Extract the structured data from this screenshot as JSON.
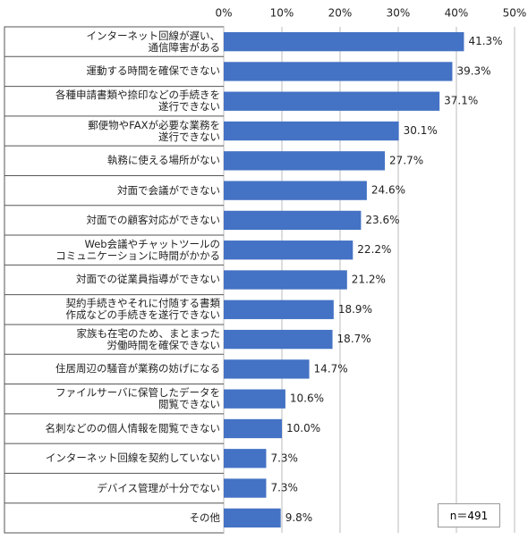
{
  "chart_data": {
    "type": "bar",
    "orientation": "horizontal",
    "categories": [
      "インターネット回線が遅い、\n通信障害がある",
      "運動する時間を確保できない",
      "各種申請書類や捺印などの手続きを\n遂行できない",
      "郵便物やFAXが必要な業務を\n遂行できない",
      "執務に使える場所がない",
      "対面で会議ができない",
      "対面での顧客対応ができない",
      "Web会議やチャットツールの\nコミュニケーションに時間がかかる",
      "対面での従業員指導ができない",
      "契約手続きやそれに付随する書類\n作成などの手続きを遂行できない",
      "家族も在宅のため、まとまった\n労働時間を確保できない",
      "住居周辺の騒音が業務の妨げになる",
      "ファイルサーバに保管したデータを\n閲覧できない",
      "名刺などのの個人情報を閲覧できない",
      "インターネット回線を契約していない",
      "デバイス管理が十分でない",
      "その他"
    ],
    "values": [
      41.3,
      39.3,
      37.1,
      30.1,
      27.7,
      24.6,
      23.6,
      22.2,
      21.2,
      18.9,
      18.7,
      14.7,
      10.6,
      10.0,
      7.3,
      7.3,
      9.8
    ],
    "value_labels": [
      "41.3%",
      "39.3%",
      "37.1%",
      "30.1%",
      "27.7%",
      "24.6%",
      "23.6%",
      "22.2%",
      "21.2%",
      "18.9%",
      "18.7%",
      "14.7%",
      "10.6%",
      "10.0%",
      "7.3%",
      "7.3%",
      "9.8%"
    ],
    "color": "#4472c4",
    "xlim": [
      0,
      50
    ],
    "xticks": [
      {
        "value": 0,
        "label": "0%"
      },
      {
        "value": 10,
        "label": "10%"
      },
      {
        "value": 20,
        "label": "20%"
      },
      {
        "value": 30,
        "label": "30%"
      },
      {
        "value": 40,
        "label": "40%"
      },
      {
        "value": 50,
        "label": "50%"
      }
    ],
    "grid": true,
    "annotation": "n＝491"
  }
}
